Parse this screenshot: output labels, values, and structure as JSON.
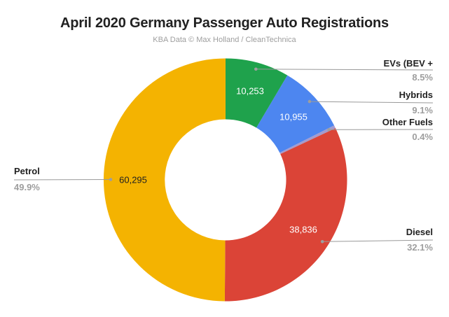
{
  "header": {
    "title": "April 2020 Germany Passenger Auto Registrations",
    "subtitle": "KBA Data © Max Holland / CleanTechnica"
  },
  "colors": {
    "background": "#ffffff",
    "title_text": "#212121",
    "subtitle_text": "#9e9e9e",
    "callout_label_text": "#212121",
    "callout_pct_text": "#9e9e9e",
    "leader_line": "#999999",
    "leader_dot": "#9e9e9e"
  },
  "chart_data": {
    "type": "pie",
    "subtype": "donut",
    "title": "April 2020 Germany Passenger Auto Registrations",
    "subtitle": "KBA Data © Max Holland / CleanTechnica",
    "direction": "clockwise",
    "start_angle_deg": 0,
    "donut_hole_ratio": 0.5,
    "legend_position": "callouts",
    "slices": [
      {
        "label": "EVs (BEV +",
        "pct": 8.5,
        "pct_label": "8.5%",
        "value": 10253,
        "value_label": "10,253",
        "color": "#1FA24C",
        "value_text_color": "#ffffff"
      },
      {
        "label": "Hybrids",
        "pct": 9.1,
        "pct_label": "9.1%",
        "value": 10955,
        "value_label": "10,955",
        "color": "#4D86F0",
        "value_text_color": "#ffffff"
      },
      {
        "label": "Other Fuels",
        "pct": 0.4,
        "pct_label": "0.4%",
        "value": null,
        "value_label": "",
        "color": "#A49BCE",
        "value_text_color": "#ffffff"
      },
      {
        "label": "Diesel",
        "pct": 32.1,
        "pct_label": "32.1%",
        "value": 38836,
        "value_label": "38,836",
        "color": "#DB4437",
        "value_text_color": "#ffffff"
      },
      {
        "label": "Petrol",
        "pct": 49.9,
        "pct_label": "49.9%",
        "value": 60295,
        "value_label": "60,295",
        "color": "#F4B301",
        "value_text_color": "#212121"
      }
    ]
  }
}
